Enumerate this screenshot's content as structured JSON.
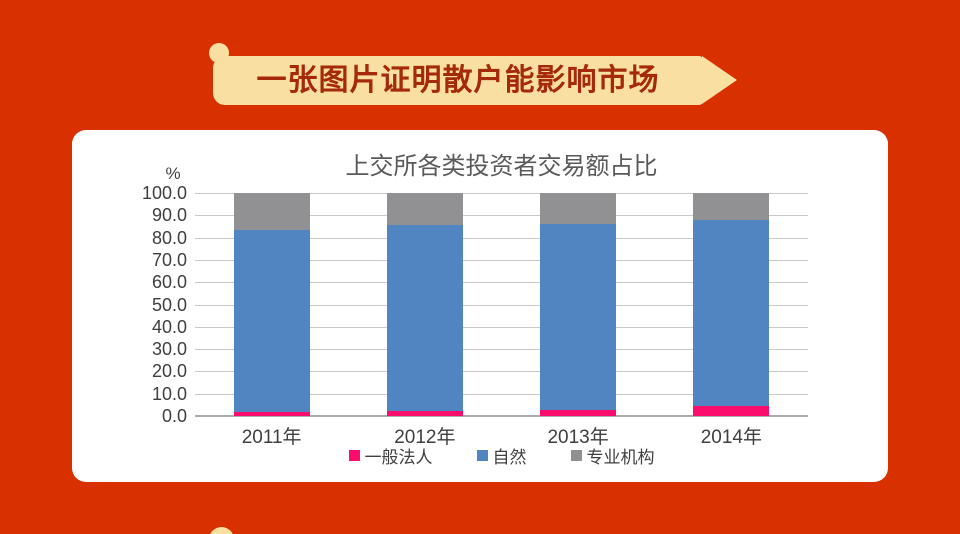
{
  "page": {
    "background_color": "#D93000"
  },
  "banner": {
    "title": "一张图片证明散户能影响市场",
    "background_color": "#FADFA2",
    "text_color": "#A5290B"
  },
  "card": {
    "background_color": "#FFFFFF"
  },
  "chart_data": {
    "type": "bar",
    "stacked": true,
    "title": "上交所各类投资者交易额占比",
    "unit_label": "%",
    "categories": [
      "2011年",
      "2012年",
      "2013年",
      "2014年"
    ],
    "series": [
      {
        "name": "一般法人",
        "color": "#FB0D6E",
        "values": [
          2.0,
          2.2,
          2.6,
          4.3
        ]
      },
      {
        "name": "自然",
        "color": "#5085C2",
        "values": [
          81.4,
          83.5,
          83.4,
          83.7
        ]
      },
      {
        "name": "专业机构",
        "color": "#919194",
        "values": [
          16.6,
          14.3,
          14.0,
          12.0
        ]
      }
    ],
    "ylim": [
      0,
      100
    ],
    "yticks": [
      "100.0",
      "90.0",
      "80.0",
      "70.0",
      "60.0",
      "50.0",
      "40.0",
      "30.0",
      "20.0",
      "10.0",
      "0.0"
    ],
    "grid": true,
    "legend_position": "bottom",
    "title_color": "#595959",
    "axis_text_color": "#3F3F3F",
    "gridline_color": "#C9C9C9",
    "axis_line_color": "#ABABAB"
  }
}
